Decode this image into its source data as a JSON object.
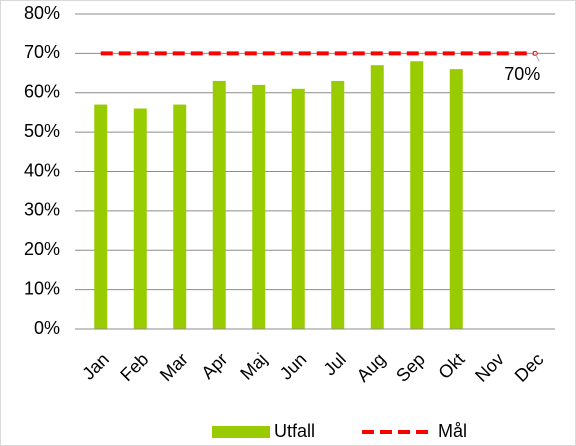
{
  "chart_data": {
    "type": "bar",
    "categories": [
      "Jan",
      "Feb",
      "Mar",
      "Apr",
      "Maj",
      "Jun",
      "Jul",
      "Aug",
      "Sep",
      "Okt",
      "Nov",
      "Dec"
    ],
    "series": [
      {
        "name": "Utfall",
        "type": "bar",
        "color": "#99cc00",
        "values": [
          57,
          56,
          57,
          63,
          62,
          61,
          63,
          67,
          68,
          66,
          null,
          null
        ]
      },
      {
        "name": "Mål",
        "type": "line",
        "color": "#ff0000",
        "values": [
          70,
          70,
          70,
          70,
          70,
          70,
          70,
          70,
          70,
          70,
          70,
          70
        ],
        "value_labels": [
          null,
          null,
          null,
          null,
          null,
          null,
          null,
          null,
          null,
          null,
          null,
          "70%"
        ]
      }
    ],
    "ylim": [
      0,
      80
    ],
    "yticks": [
      {
        "value": 0,
        "label": "0%"
      },
      {
        "value": 10,
        "label": "10%"
      },
      {
        "value": 20,
        "label": "20%"
      },
      {
        "value": 30,
        "label": "30%"
      },
      {
        "value": 40,
        "label": "40%"
      },
      {
        "value": 50,
        "label": "50%"
      },
      {
        "value": 60,
        "label": "60%"
      },
      {
        "value": 70,
        "label": "70%"
      },
      {
        "value": 80,
        "label": "80%"
      }
    ],
    "grid": true,
    "legend": "bottom"
  }
}
